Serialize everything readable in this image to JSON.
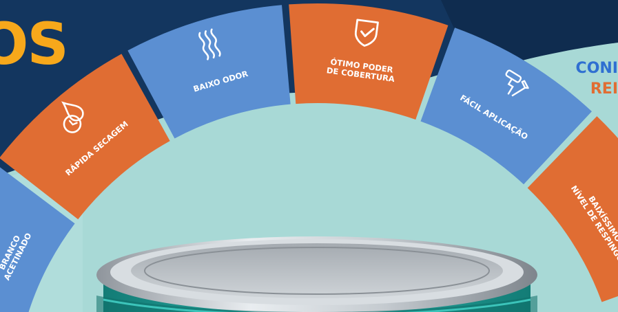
{
  "brand_fragment": "OS",
  "headline": {
    "line1": "CONI",
    "line2": "REI"
  },
  "features": [
    {
      "id": "branco-acetinado",
      "lines": [
        "BRANCO",
        "ACETINADO"
      ],
      "icon": "white-circle-swatch-icon",
      "color": "#5b8fd2"
    },
    {
      "id": "rapida-secagem",
      "lines": [
        "RÁPIDA SECAGEM"
      ],
      "icon": "clock-drop-icon",
      "color": "#e06d33"
    },
    {
      "id": "baixo-odor",
      "lines": [
        "BAIXO ODOR"
      ],
      "icon": "odor-waves-icon",
      "color": "#5b8fd2"
    },
    {
      "id": "otimo-poder",
      "lines": [
        "ÓTIMO PODER",
        "DE COBERTURA"
      ],
      "icon": "shield-check-icon",
      "color": "#e06d33"
    },
    {
      "id": "facil-aplicacao",
      "lines": [
        "FÁCIL APLICAÇÃO"
      ],
      "icon": "roller-brush-icon",
      "color": "#5b8fd2"
    },
    {
      "id": "baixissimo-respingo",
      "lines": [
        "BAIXÍSSIMO",
        "NÍVEL DE RESPINGO"
      ],
      "icon": "no-splash-icon",
      "color": "#e06d33"
    }
  ],
  "colors": {
    "navy": "#13365f",
    "teal_bg": "#a8d9d6",
    "orange": "#e06d33",
    "blue": "#5b8fd2",
    "yellow": "#f7a81b",
    "can_teal": "#22a59d"
  }
}
